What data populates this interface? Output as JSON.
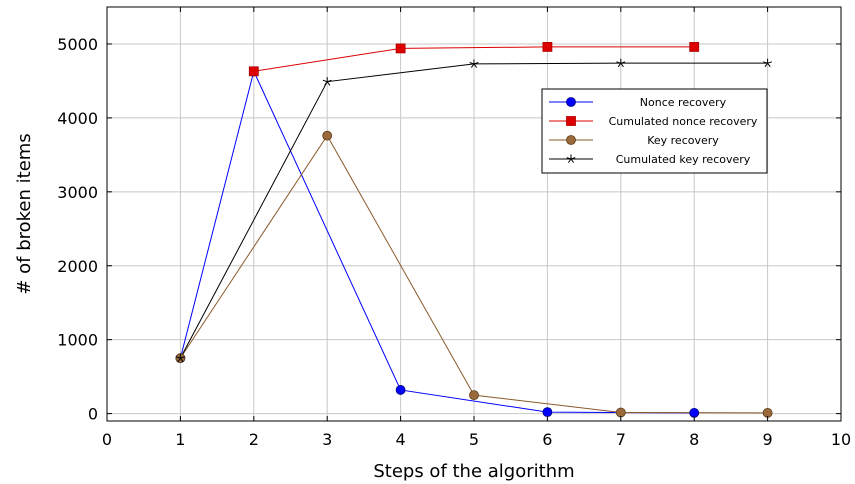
{
  "chart_data": {
    "type": "line",
    "title": "",
    "xlabel": "Steps of the algorithm",
    "ylabel": "# of broken items",
    "xlim": [
      0,
      10
    ],
    "ylim": [
      -100,
      5500
    ],
    "xticks": [
      "0",
      "1",
      "2",
      "3",
      "4",
      "5",
      "6",
      "7",
      "8",
      "9",
      "10"
    ],
    "yticks": [
      "0",
      "1000",
      "2000",
      "3000",
      "4000",
      "5000"
    ],
    "grid": true,
    "legend_position": "upper-right",
    "series": [
      {
        "name": "Nonce recovery",
        "color": "#0000ff",
        "marker": "circle",
        "x": [
          1,
          2,
          4,
          6,
          8
        ],
        "y": [
          750,
          4630,
          320,
          20,
          10
        ]
      },
      {
        "name": "Cumulated nonce recovery",
        "color": "#dd0000",
        "marker": "square",
        "x": [
          2,
          4,
          6,
          8
        ],
        "y": [
          4630,
          4940,
          4960,
          4960
        ]
      },
      {
        "name": "Key recovery",
        "color": "#8b5a2b",
        "marker": "circle",
        "x": [
          1,
          3,
          5,
          7,
          9
        ],
        "y": [
          750,
          3760,
          250,
          15,
          10
        ]
      },
      {
        "name": "Cumulated key recovery",
        "color": "#000000",
        "marker": "star",
        "x": [
          1,
          3,
          5,
          7,
          9
        ],
        "y": [
          750,
          4490,
          4730,
          4740,
          4740
        ]
      }
    ]
  }
}
